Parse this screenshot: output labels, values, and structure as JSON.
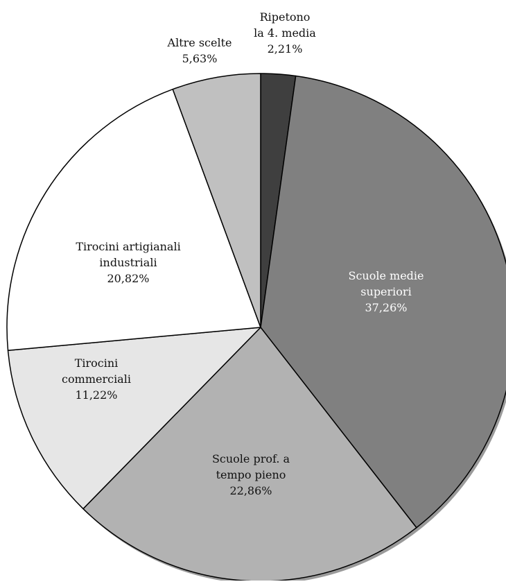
{
  "chart_data": {
    "type": "pie",
    "title": "",
    "start_angle_deg": 0,
    "direction": "clockwise",
    "slices": [
      {
        "label_lines": [
          "Ripetono",
          "la 4. media"
        ],
        "value_label": "2,21%",
        "value": 2.21,
        "color": "#3f3f3f",
        "text_color": "#111111"
      },
      {
        "label_lines": [
          "Scuole medie",
          "superiori"
        ],
        "value_label": "37,26%",
        "value": 37.26,
        "color": "#808080",
        "text_color": "#ffffff"
      },
      {
        "label_lines": [
          "Scuole prof. a",
          "tempo pieno"
        ],
        "value_label": "22,86%",
        "value": 22.86,
        "color": "#b2b2b2",
        "text_color": "#111111"
      },
      {
        "label_lines": [
          "Tirocini",
          "commerciali"
        ],
        "value_label": "11,22%",
        "value": 11.22,
        "color": "#e6e6e6",
        "text_color": "#111111"
      },
      {
        "label_lines": [
          "Tirocini artigianali",
          "industriali"
        ],
        "value_label": "20,82%",
        "value": 20.82,
        "color": "#ffffff",
        "text_color": "#111111"
      },
      {
        "label_lines": [
          "Altre scelte"
        ],
        "value_label": "5,63%",
        "value": 5.63,
        "color": "#c0c0c0",
        "text_color": "#111111"
      }
    ]
  }
}
